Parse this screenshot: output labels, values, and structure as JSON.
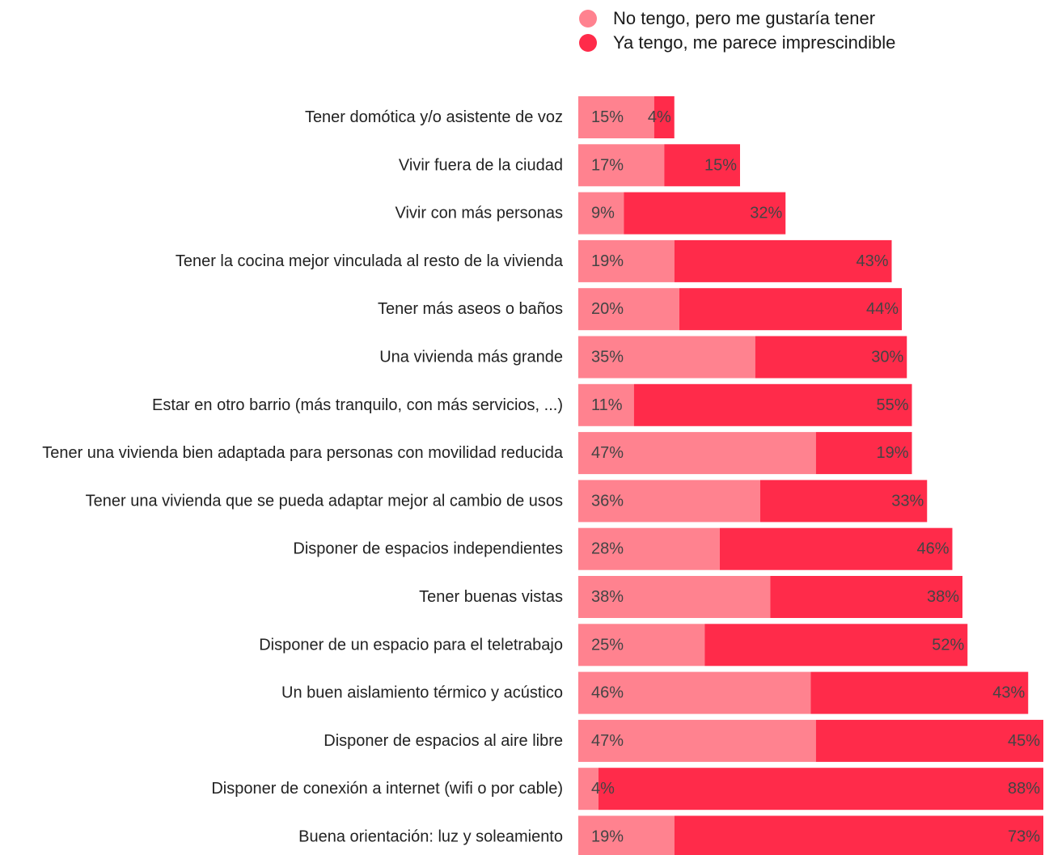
{
  "colors": {
    "want": "#ff828f",
    "have": "#ff2b4a"
  },
  "legend": {
    "items": [
      {
        "label": "No tengo, pero me gustaría tener",
        "color_key": "want"
      },
      {
        "label": "Ya tengo, me parece imprescindible",
        "color_key": "have"
      }
    ]
  },
  "chart_data": {
    "type": "bar",
    "orientation": "horizontal",
    "stacked": true,
    "categories": [
      "Tener domótica y/o asistente de voz",
      "Vivir fuera de la ciudad",
      "Vivir con más personas",
      "Tener la cocina mejor vinculada al resto de la vivienda",
      "Tener más aseos o baños",
      "Una vivienda más grande",
      "Estar en otro barrio (más tranquilo, con más servicios, ...)",
      "Tener una vivienda bien adaptada para personas con movilidad reducida",
      "Tener una vivienda que se pueda adaptar mejor al cambio de usos",
      "Disponer de espacios independientes",
      "Tener buenas vistas",
      "Disponer de un espacio para el teletrabajo",
      "Un buen aislamiento térmico y acústico",
      "Disponer de espacios al aire libre",
      "Disponer de conexión a internet (wifi o por cable)",
      "Buena orientación: luz y soleamiento"
    ],
    "series": [
      {
        "name": "No tengo, pero me gustaría tener",
        "values": [
          15,
          17,
          9,
          19,
          20,
          35,
          11,
          47,
          36,
          28,
          38,
          25,
          46,
          47,
          4,
          19
        ],
        "labels": [
          "15%",
          "17%",
          "9%",
          "19%",
          "20%",
          "35%",
          "11%",
          "47%",
          "36%",
          "28%",
          "38%",
          "25%",
          "46%",
          "47%",
          "4%",
          "19%"
        ]
      },
      {
        "name": "Ya tengo, me parece imprescindible",
        "values": [
          4,
          15,
          32,
          43,
          44,
          30,
          55,
          19,
          33,
          46,
          38,
          52,
          43,
          45,
          88,
          73
        ],
        "labels": [
          "4%",
          "15%",
          "32%",
          "43%",
          "44%",
          "30%",
          "55%",
          "19%",
          "33%",
          "46%",
          "38%",
          "52%",
          "43%",
          "45%",
          "88%",
          "73%"
        ]
      }
    ],
    "unit": "%",
    "legend_position": "top",
    "grid": false
  }
}
